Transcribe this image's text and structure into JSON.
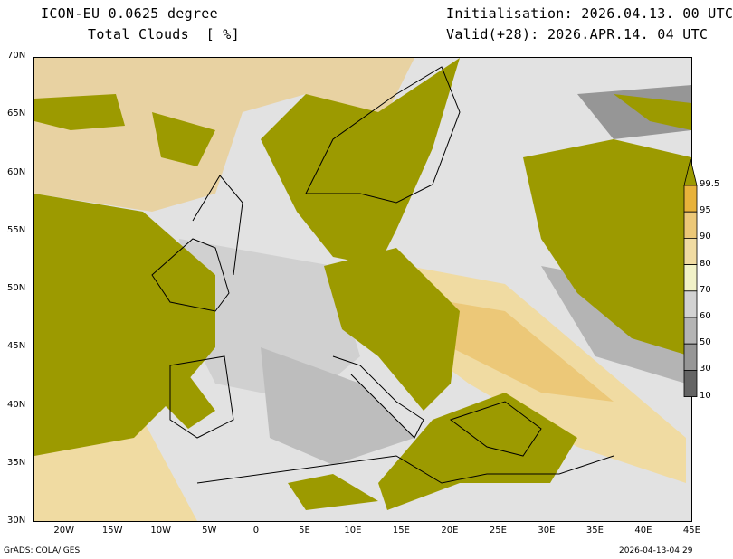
{
  "header": {
    "model": "ICON-EU 0.0625 degree",
    "variable": "Total Clouds  [ %]",
    "init": "Initialisation: 2026.04.13. 00 UTC",
    "valid": "Valid(+28): 2026.APR.14. 04 UTC"
  },
  "axes": {
    "lat_labels": [
      "70N",
      "65N",
      "60N",
      "55N",
      "50N",
      "45N",
      "40N",
      "35N",
      "30N"
    ],
    "lat_values": [
      70,
      65,
      60,
      55,
      50,
      45,
      40,
      35,
      30
    ],
    "lon_labels": [
      "20W",
      "15W",
      "10W",
      "5W",
      "0",
      "5E",
      "10E",
      "15E",
      "20E",
      "25E",
      "30E",
      "35E",
      "40E",
      "45E"
    ],
    "lon_values": [
      -20,
      -15,
      -10,
      -5,
      0,
      5,
      10,
      15,
      20,
      25,
      30,
      35,
      40,
      45
    ]
  },
  "colorbar": {
    "top_color": "#9c9a00",
    "levels": [
      "99.5",
      "95",
      "90",
      "80",
      "70",
      "60",
      "50",
      "30",
      "10"
    ],
    "colors": [
      "#e8b23a",
      "#ecc878",
      "#f0dba2",
      "#f2f2c8",
      "#d2d2d2",
      "#b4b4b4",
      "#969696",
      "#646464"
    ]
  },
  "footer": {
    "left": "GrADS: COLA/IGES",
    "right": "2026-04-13-04:29"
  }
}
